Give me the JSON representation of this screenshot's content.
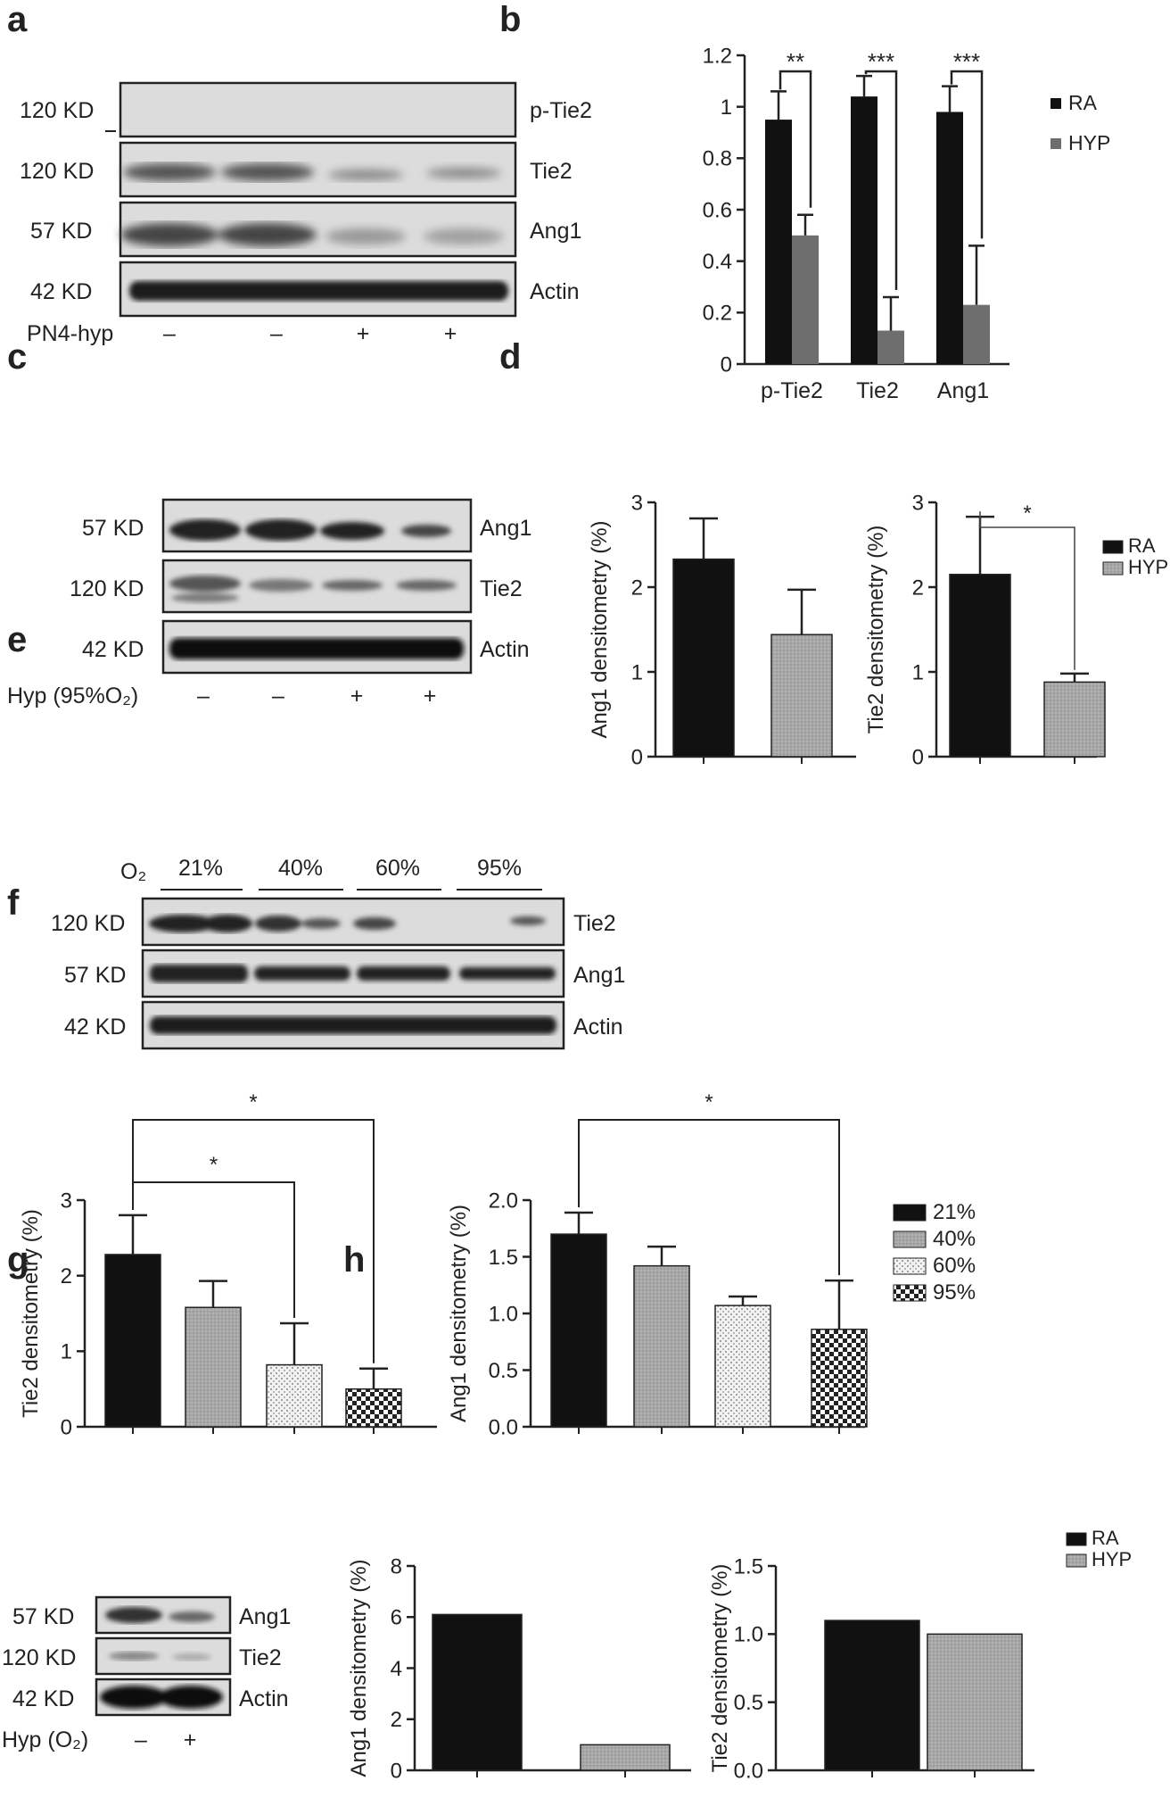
{
  "panels": {
    "a": "a",
    "b": "b",
    "c": "c",
    "d": "d",
    "e": "e",
    "f": "f",
    "g": "g",
    "h": "h"
  },
  "blot_a": {
    "rows": [
      {
        "kd": "120 KD",
        "protein": "p-Tie2"
      },
      {
        "kd": "120 KD",
        "protein": "Tie2"
      },
      {
        "kd": "57 KD",
        "protein": "Ang1"
      },
      {
        "kd": "42 KD",
        "protein": "Actin"
      }
    ],
    "condition_label": "PN4-hyp",
    "lane_signs": [
      "–",
      "–",
      "+",
      "+"
    ]
  },
  "blot_c": {
    "rows": [
      {
        "kd": "57 KD",
        "protein": "Ang1"
      },
      {
        "kd": "120 KD",
        "protein": "Tie2"
      },
      {
        "kd": "42 KD",
        "protein": "Actin"
      }
    ],
    "condition_label": "Hyp (95%O₂)",
    "lane_signs": [
      "–",
      "–",
      "+",
      "+"
    ]
  },
  "blot_e": {
    "o2_label": "O₂",
    "groups": [
      "21%",
      "40%",
      "60%",
      "95%"
    ],
    "rows": [
      {
        "kd": "120 KD",
        "protein": "Tie2"
      },
      {
        "kd": "57 KD",
        "protein": "Ang1"
      },
      {
        "kd": "42 KD",
        "protein": "Actin"
      }
    ]
  },
  "blot_g": {
    "rows": [
      {
        "kd": "57 KD",
        "protein": "Ang1"
      },
      {
        "kd": "120 KD",
        "protein": "Tie2"
      },
      {
        "kd": "42 KD",
        "protein": "Actin"
      }
    ],
    "condition_label": "Hyp (O₂)",
    "lane_signs": [
      "–",
      "+"
    ]
  },
  "chart_data": [
    {
      "id": "b",
      "type": "bar",
      "categories": [
        "p-Tie2",
        "Tie2",
        "Ang1"
      ],
      "series": [
        {
          "name": "RA",
          "values": [
            0.95,
            1.04,
            0.98
          ],
          "errors": [
            0.11,
            0.08,
            0.1
          ],
          "color": "#111111"
        },
        {
          "name": "HYP",
          "values": [
            0.5,
            0.13,
            0.23
          ],
          "errors": [
            0.08,
            0.13,
            0.23
          ],
          "color": "#6e6e6e"
        }
      ],
      "ylim": [
        0,
        1.2
      ],
      "yticks": [
        "0",
        "0.2",
        "0.4",
        "0.6",
        "0.8",
        "1",
        "1.2"
      ],
      "significance": [
        "**",
        "***",
        "***"
      ],
      "legend": "right"
    },
    {
      "id": "d1",
      "type": "bar",
      "categories": [
        "RA",
        "HYP"
      ],
      "values": [
        2.33,
        1.44
      ],
      "errors": [
        0.48,
        0.53
      ],
      "colors": [
        "#111111",
        "#aaaaaa"
      ],
      "ylabel": "Ang1 densitometry (%)",
      "ylim": [
        0,
        3
      ],
      "yticks": [
        "0",
        "1",
        "2",
        "3"
      ]
    },
    {
      "id": "d2",
      "type": "bar",
      "categories": [
        "RA",
        "HYP"
      ],
      "values": [
        2.15,
        0.88
      ],
      "errors": [
        0.68,
        0.1
      ],
      "colors": [
        "#111111",
        "#aaaaaa"
      ],
      "ylabel": "Tie2 densitometry (%)",
      "ylim": [
        0,
        3
      ],
      "yticks": [
        "0",
        "1",
        "2",
        "3"
      ],
      "significance": [
        "*"
      ],
      "legend_entries": [
        "RA",
        "HYP"
      ]
    },
    {
      "id": "f1",
      "type": "bar",
      "categories": [
        "21%",
        "40%",
        "60%",
        "95%"
      ],
      "values": [
        2.28,
        1.58,
        0.82,
        0.5
      ],
      "errors": [
        0.52,
        0.35,
        0.55,
        0.27
      ],
      "patterns": [
        "solid",
        "grey",
        "dots",
        "check"
      ],
      "ylabel": "Tie2 densitometry (%)",
      "ylim": [
        0,
        3
      ],
      "yticks": [
        "0",
        "1",
        "2",
        "3"
      ],
      "significance": [
        "*",
        "*"
      ]
    },
    {
      "id": "f2",
      "type": "bar",
      "categories": [
        "21%",
        "40%",
        "60%",
        "95%"
      ],
      "values": [
        1.7,
        1.42,
        1.07,
        0.86
      ],
      "errors": [
        0.19,
        0.17,
        0.08,
        0.43
      ],
      "patterns": [
        "solid",
        "grey",
        "dots",
        "check"
      ],
      "ylabel": "Ang1 densitometry (%)",
      "ylim": [
        0,
        2
      ],
      "yticks": [
        "0.0",
        "0.5",
        "1.0",
        "1.5",
        "2.0"
      ],
      "significance": [
        "*"
      ],
      "legend_entries": [
        "21%",
        "40%",
        "60%",
        "95%"
      ]
    },
    {
      "id": "h1",
      "type": "bar",
      "categories": [
        "RA",
        "HYP"
      ],
      "values": [
        6.1,
        1.0
      ],
      "colors": [
        "#111111",
        "#aaaaaa"
      ],
      "ylabel": "Ang1 densitometry (%)",
      "ylim": [
        0,
        8
      ],
      "yticks": [
        "0",
        "2",
        "4",
        "6",
        "8"
      ]
    },
    {
      "id": "h2",
      "type": "bar",
      "categories": [
        "RA",
        "HYP"
      ],
      "values": [
        1.1,
        1.0
      ],
      "colors": [
        "#111111",
        "#aaaaaa"
      ],
      "ylabel": "Tie2 densitometry (%)",
      "ylim": [
        0,
        1.5
      ],
      "yticks": [
        "0.0",
        "0.5",
        "1.0",
        "1.5"
      ],
      "legend_entries": [
        "RA",
        "HYP"
      ]
    }
  ]
}
